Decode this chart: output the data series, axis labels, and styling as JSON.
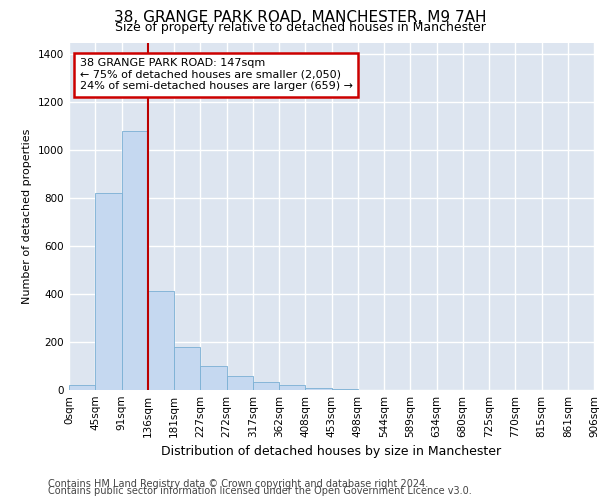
{
  "title_line1": "38, GRANGE PARK ROAD, MANCHESTER, M9 7AH",
  "title_line2": "Size of property relative to detached houses in Manchester",
  "xlabel": "Distribution of detached houses by size in Manchester",
  "ylabel": "Number of detached properties",
  "footer_line1": "Contains HM Land Registry data © Crown copyright and database right 2024.",
  "footer_line2": "Contains public sector information licensed under the Open Government Licence v3.0.",
  "annotation_line1": "38 GRANGE PARK ROAD: 147sqm",
  "annotation_line2": "← 75% of detached houses are smaller (2,050)",
  "annotation_line3": "24% of semi-detached houses are larger (659) →",
  "bar_values": [
    20,
    820,
    1080,
    415,
    180,
    100,
    60,
    35,
    22,
    10,
    5,
    0,
    0,
    0,
    0,
    0,
    0,
    0,
    0,
    0
  ],
  "bin_labels": [
    "0sqm",
    "45sqm",
    "91sqm",
    "136sqm",
    "181sqm",
    "227sqm",
    "272sqm",
    "317sqm",
    "362sqm",
    "408sqm",
    "453sqm",
    "498sqm",
    "544sqm",
    "589sqm",
    "634sqm",
    "680sqm",
    "725sqm",
    "770sqm",
    "815sqm",
    "861sqm",
    "906sqm"
  ],
  "bar_color": "#c5d8f0",
  "bar_edge_color": "#7aafd4",
  "vline_x": 3,
  "vline_color": "#bb0000",
  "ylim": [
    0,
    1450
  ],
  "yticks": [
    0,
    200,
    400,
    600,
    800,
    1000,
    1200,
    1400
  ],
  "annotation_box_color": "#cc0000",
  "background_color": "#dde5f0",
  "grid_color": "#ffffff",
  "title_fontsize": 11,
  "subtitle_fontsize": 9,
  "ylabel_fontsize": 8,
  "xlabel_fontsize": 9,
  "footer_fontsize": 7,
  "tick_fontsize": 7.5,
  "annotation_fontsize": 8
}
